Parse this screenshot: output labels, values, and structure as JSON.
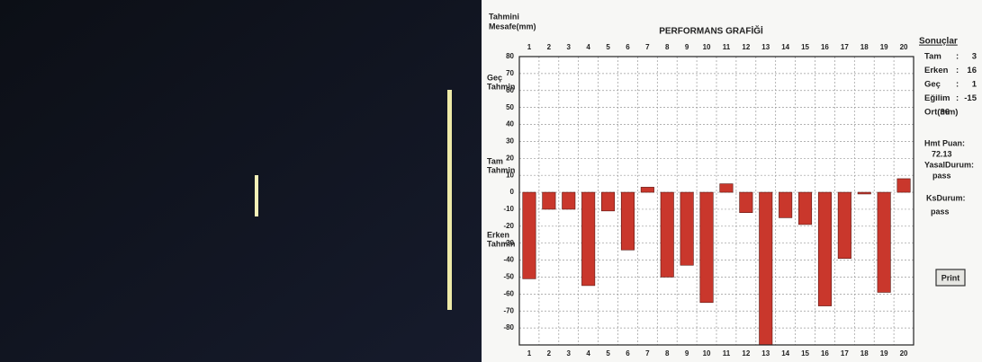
{
  "y_axis_label": [
    "Tahmini",
    "Mesafe(mm)"
  ],
  "zone_labels": [
    [
      "Geç",
      "Tahmin"
    ],
    [
      "Tam",
      "Tahmin"
    ],
    [
      "Erken",
      "Tahmin"
    ]
  ],
  "chart_data": {
    "type": "bar",
    "title": "PERFORMANS GRAFİĞİ",
    "categories": [
      "1",
      "2",
      "3",
      "4",
      "5",
      "6",
      "7",
      "8",
      "9",
      "10",
      "11",
      "12",
      "13",
      "14",
      "15",
      "16",
      "17",
      "18",
      "19",
      "20"
    ],
    "values": [
      -51,
      -10,
      -10,
      -55,
      -11,
      -34,
      3,
      -50,
      -43,
      -65,
      5,
      -12,
      -90,
      -15,
      -19,
      -67,
      -39,
      -1,
      -59,
      8
    ],
    "color": "#c9372c",
    "ylim": [
      -90,
      80
    ],
    "yticks": [
      80,
      70,
      60,
      50,
      40,
      30,
      20,
      10,
      0,
      -10,
      -20,
      -30,
      -40,
      -50,
      -60,
      -70,
      -80
    ],
    "grid": true
  },
  "results": {
    "title": "Sonuçlar",
    "rows": [
      [
        "Tam",
        ":",
        "3"
      ],
      [
        "Erken",
        ":",
        "16"
      ],
      [
        "Geç",
        ":",
        "1"
      ],
      [
        "Eğilim",
        ":",
        "-15"
      ],
      [
        "Ort(mm)",
        "36"
      ]
    ],
    "score_label": "Hmt Puan:",
    "score": "72.13",
    "legal_label": "YasalDurum:",
    "legal": "pass",
    "ks_label": "KsDurum:",
    "ks": "pass",
    "button": "Print"
  }
}
